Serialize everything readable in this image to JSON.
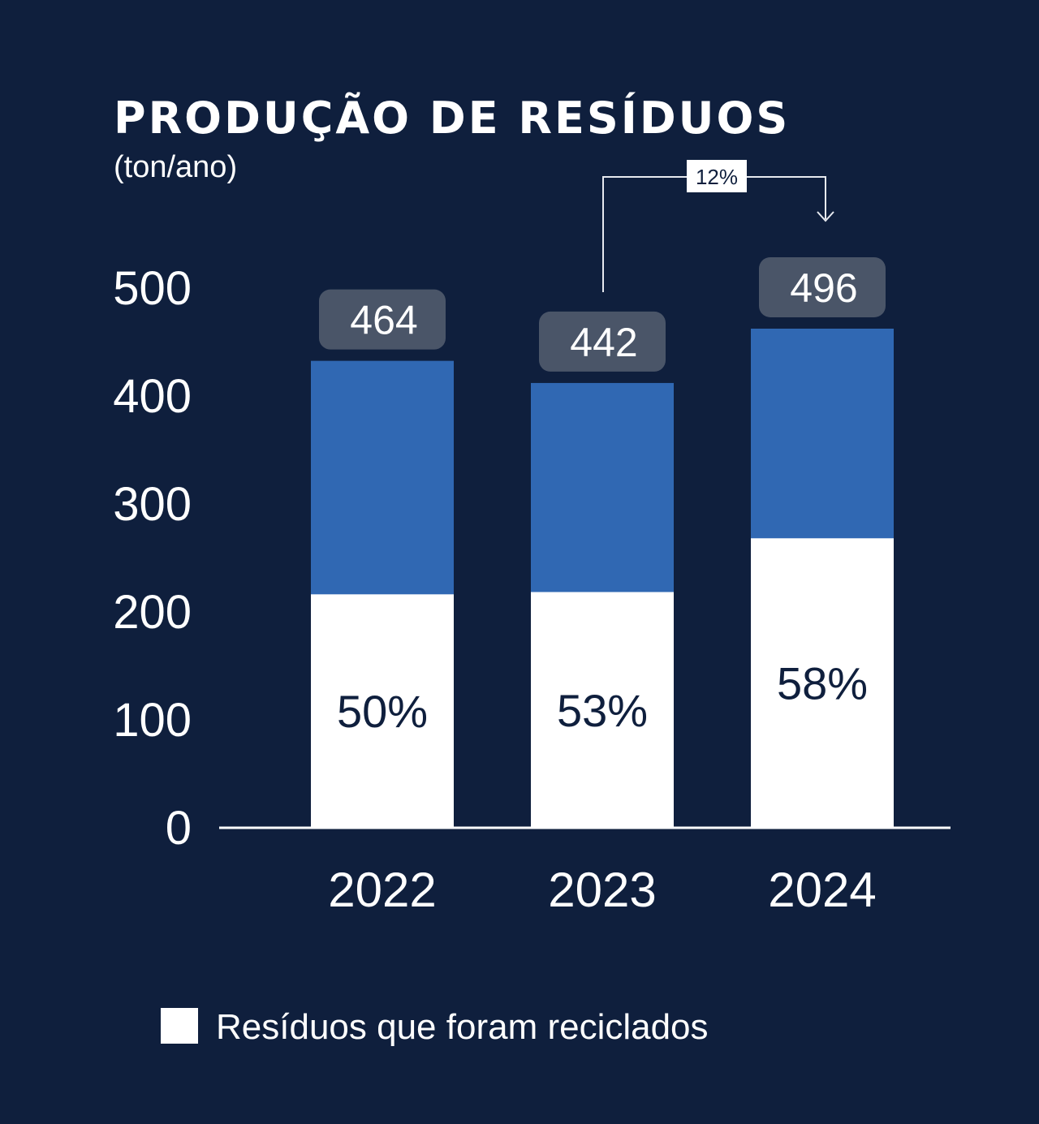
{
  "colors": {
    "background": "#0f1f3d",
    "total_bar": "#3068b3",
    "recycled_bar": "#ffffff",
    "total_label_box": "#4a5568"
  },
  "chart_data": {
    "type": "bar",
    "title": "PRODUÇÃO DE RESÍDUOS",
    "subtitle": "(ton/ano)",
    "categories": [
      "2022",
      "2023",
      "2024"
    ],
    "totals": [
      464,
      442,
      496
    ],
    "recycled_percent": [
      50,
      53,
      58
    ],
    "recycled_percent_labels": [
      "50%",
      "53%",
      "58%"
    ],
    "yticks": [
      0,
      100,
      200,
      300,
      400,
      500
    ],
    "ylim": [
      0,
      500
    ],
    "grid": false,
    "annotation": {
      "label": "12%",
      "from": "2023",
      "to": "2024"
    },
    "legend": {
      "position": "bottom-left",
      "entries": [
        {
          "label": "Resíduos que foram reciclados",
          "color": "#ffffff"
        }
      ]
    }
  }
}
